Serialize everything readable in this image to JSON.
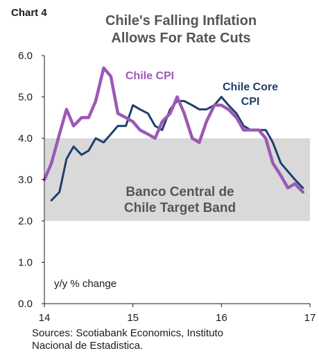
{
  "header": {
    "chart_label": "Chart 4",
    "title_line1": "Chile's Falling Inflation",
    "title_line2": "Allows For Rate Cuts"
  },
  "source": {
    "line1": "Sources: Scotiabank Economics, Instituto",
    "line2": "Nacional de Estadistica."
  },
  "colors": {
    "chile_cpi": "#9b59b6",
    "chile_core_cpi": "#1f3f6b",
    "target_band": "#d9d9d9",
    "axis": "#1a1a1a",
    "title_text": "#555555"
  },
  "chart_data": {
    "type": "line",
    "title": "Chile's Falling Inflation Allows For Rate Cuts",
    "ylabel": "y/y % change",
    "xlim": [
      14,
      17
    ],
    "ylim": [
      0,
      6
    ],
    "x_ticks": [
      {
        "value": 14,
        "label": "14"
      },
      {
        "value": 15,
        "label": "15"
      },
      {
        "value": 16,
        "label": "16"
      },
      {
        "value": 17,
        "label": "17"
      }
    ],
    "y_ticks": [
      {
        "value": 0,
        "label": "0.0"
      },
      {
        "value": 1,
        "label": "1.0"
      },
      {
        "value": 2,
        "label": "2.0"
      },
      {
        "value": 3,
        "label": "3.0"
      },
      {
        "value": 4,
        "label": "4.0"
      },
      {
        "value": 5,
        "label": "5.0"
      },
      {
        "value": 6,
        "label": "6.0"
      }
    ],
    "grid": false,
    "band": {
      "ymin": 2.0,
      "ymax": 4.0,
      "label_line1": "Banco Central de",
      "label_line2": "Chile Target Band"
    },
    "series": [
      {
        "name": "Chile CPI",
        "label_lines": [
          "Chile CPI"
        ],
        "x": [
          14.0,
          14.08,
          14.17,
          14.25,
          14.33,
          14.42,
          14.5,
          14.58,
          14.67,
          14.75,
          14.83,
          14.92,
          15.0,
          15.08,
          15.17,
          15.25,
          15.33,
          15.42,
          15.5,
          15.58,
          15.67,
          15.75,
          15.83,
          15.92,
          16.0,
          16.08,
          16.17,
          16.25,
          16.33,
          16.42,
          16.5,
          16.58,
          16.67,
          16.75,
          16.83,
          16.92
        ],
        "values": [
          3.0,
          3.4,
          4.1,
          4.7,
          4.3,
          4.5,
          4.5,
          4.9,
          5.7,
          5.5,
          4.6,
          4.5,
          4.4,
          4.2,
          4.1,
          4.0,
          4.4,
          4.6,
          5.0,
          4.6,
          4.0,
          3.9,
          4.4,
          4.8,
          4.8,
          4.7,
          4.5,
          4.2,
          4.2,
          4.2,
          4.0,
          3.4,
          3.1,
          2.8,
          2.9,
          2.7
        ]
      },
      {
        "name": "Chile Core CPI",
        "label_lines": [
          "Chile Core",
          "CPI"
        ],
        "x": [
          14.08,
          14.17,
          14.25,
          14.33,
          14.42,
          14.5,
          14.58,
          14.67,
          14.75,
          14.83,
          14.92,
          15.0,
          15.08,
          15.17,
          15.25,
          15.33,
          15.42,
          15.5,
          15.58,
          15.67,
          15.75,
          15.83,
          15.92,
          16.0,
          16.08,
          16.17,
          16.25,
          16.33,
          16.42,
          16.5,
          16.58,
          16.67,
          16.75,
          16.83,
          16.92
        ],
        "values": [
          2.5,
          2.7,
          3.5,
          3.8,
          3.6,
          3.7,
          4.0,
          3.9,
          4.1,
          4.3,
          4.3,
          4.8,
          4.7,
          4.6,
          4.3,
          4.2,
          4.7,
          4.9,
          4.9,
          4.8,
          4.7,
          4.7,
          4.8,
          5.0,
          4.8,
          4.6,
          4.3,
          4.2,
          4.2,
          4.2,
          3.9,
          3.4,
          3.2,
          3.0,
          2.8
        ]
      }
    ]
  }
}
